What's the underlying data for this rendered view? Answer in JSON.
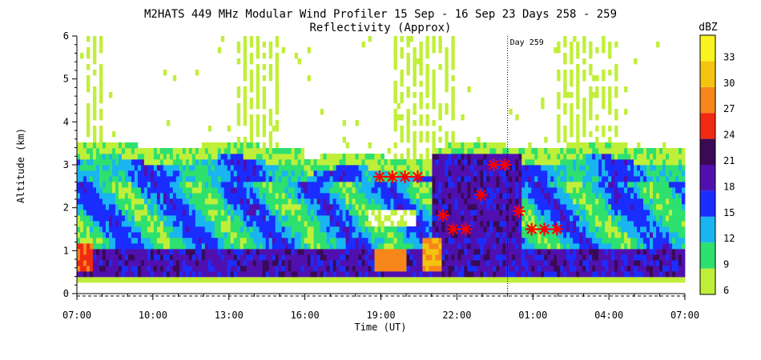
{
  "chart_data": {
    "type": "heatmap",
    "title": "M2HATS 449 MHz Modular Wind Profiler  15 Sep - 16 Sep 23 Days 258 - 259",
    "subtitle": "Reflectivity (Approx)",
    "xlabel": "Time (UT)",
    "ylabel": "Altitude (km)",
    "x_ticks": [
      "07:00",
      "10:00",
      "13:00",
      "16:00",
      "19:00",
      "22:00",
      "01:00",
      "04:00",
      "07:00"
    ],
    "x_range_hours": [
      0,
      24
    ],
    "y_ticks": [
      "0",
      "1",
      "2",
      "3",
      "4",
      "5",
      "6"
    ],
    "y_range_km": [
      0,
      6
    ],
    "marker_line": {
      "label": "Day 259",
      "x_hours": 17
    },
    "colorbar": {
      "unit": "dBZ",
      "tick_labels": [
        "6",
        "9",
        "12",
        "15",
        "18",
        "21",
        "24",
        "27",
        "30",
        "33"
      ],
      "bands": [
        {
          "min": 6,
          "max": 9,
          "color": "#c0ef3a"
        },
        {
          "min": 9,
          "max": 12,
          "color": "#2ee06e"
        },
        {
          "min": 12,
          "max": 15,
          "color": "#19b5f0"
        },
        {
          "min": 15,
          "max": 18,
          "color": "#1a2dff"
        },
        {
          "min": 18,
          "max": 21,
          "color": "#5010b0"
        },
        {
          "min": 21,
          "max": 24,
          "color": "#3a0a55"
        },
        {
          "min": 24,
          "max": 27,
          "color": "#f02a12"
        },
        {
          "min": 27,
          "max": 30,
          "color": "#f7861b"
        },
        {
          "min": 30,
          "max": 33,
          "color": "#f4c40f"
        },
        {
          "min": 33,
          "max": 36,
          "color": "#f9f31f"
        }
      ]
    },
    "markers": [
      {
        "x_hours": 11.95,
        "y_km": 2.72
      },
      {
        "x_hours": 12.45,
        "y_km": 2.72
      },
      {
        "x_hours": 12.95,
        "y_km": 2.72
      },
      {
        "x_hours": 13.45,
        "y_km": 2.72
      },
      {
        "x_hours": 14.45,
        "y_km": 1.82
      },
      {
        "x_hours": 14.85,
        "y_km": 1.5
      },
      {
        "x_hours": 15.35,
        "y_km": 1.5
      },
      {
        "x_hours": 15.95,
        "y_km": 2.3
      },
      {
        "x_hours": 16.45,
        "y_km": 3.0
      },
      {
        "x_hours": 16.9,
        "y_km": 3.0
      },
      {
        "x_hours": 17.45,
        "y_km": 1.92
      },
      {
        "x_hours": 17.95,
        "y_km": 1.5
      },
      {
        "x_hours": 18.45,
        "y_km": 1.5
      },
      {
        "x_hours": 18.95,
        "y_km": 1.5
      }
    ],
    "field_summary": [
      {
        "level": "surface layer 0.2-0.5 km",
        "dbz": 7
      },
      {
        "level": "boundary layer 0.5-1.0 km",
        "dbz": 19
      },
      {
        "level": "mid layer 1.0-2.5 km",
        "dbz": 13
      },
      {
        "level": "cloud top edge ~3.3 km",
        "dbz": 8
      },
      {
        "level": "above 3.5 km sparse streaks",
        "dbz": 6
      }
    ]
  }
}
